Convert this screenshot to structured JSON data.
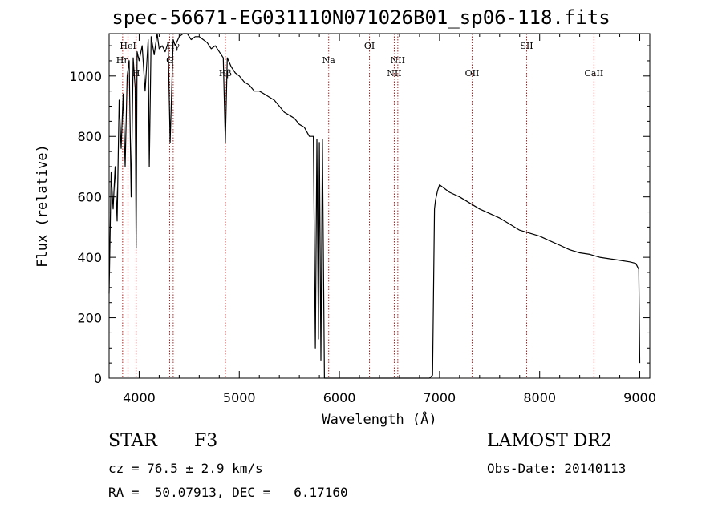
{
  "chart_data": {
    "type": "line",
    "title": "spec-56671-EG031110N071026B01_sp06-118.fits",
    "xlabel": "Wavelength (Å)",
    "ylabel": "Flux (relative)",
    "xlim": [
      3700,
      9100
    ],
    "ylim": [
      0,
      1140
    ],
    "xticks": [
      4000,
      5000,
      6000,
      7000,
      8000,
      9000
    ],
    "yticks": [
      0,
      200,
      400,
      600,
      800,
      1000
    ],
    "line_color": "#000000",
    "marker_color": "#b22222",
    "series": [
      {
        "x": [
          3700,
          3720,
          3740,
          3760,
          3780,
          3800,
          3820,
          3840,
          3860,
          3880,
          3900,
          3920,
          3940,
          3960,
          3970,
          3980,
          4000,
          4030,
          4060,
          4090,
          4101,
          4120,
          4150,
          4180,
          4200,
          4230,
          4260,
          4290,
          4310,
          4340,
          4360,
          4400,
          4440,
          4480,
          4520,
          4560,
          4600,
          4640,
          4680,
          4720,
          4760,
          4800,
          4840,
          4861,
          4880,
          4920,
          4960,
          5000,
          5050,
          5100,
          5150,
          5200,
          5250,
          5300,
          5350,
          5400,
          5450,
          5500,
          5550,
          5600,
          5650,
          5700,
          5740,
          5760,
          5775,
          5790,
          5800,
          5815,
          5830,
          5850,
          5900,
          6000,
          6500,
          6900,
          6930,
          6950,
          6960,
          6980,
          7000,
          7100,
          7200,
          7300,
          7400,
          7500,
          7600,
          7700,
          7800,
          7900,
          8000,
          8100,
          8200,
          8300,
          8400,
          8500,
          8600,
          8700,
          8800,
          8900,
          8960,
          8990,
          9000
        ],
        "y": [
          280,
          680,
          560,
          700,
          520,
          920,
          760,
          940,
          700,
          1000,
          1050,
          600,
          1060,
          960,
          430,
          1080,
          1050,
          1100,
          950,
          1120,
          700,
          1130,
          1070,
          1140,
          1090,
          1100,
          1080,
          1110,
          780,
          1120,
          1100,
          1130,
          1140,
          1140,
          1120,
          1130,
          1130,
          1120,
          1110,
          1090,
          1100,
          1080,
          1060,
          780,
          1060,
          1030,
          1010,
          1000,
          980,
          970,
          950,
          950,
          940,
          930,
          920,
          900,
          880,
          870,
          860,
          840,
          830,
          800,
          800,
          100,
          790,
          130,
          780,
          60,
          790,
          0,
          0,
          0,
          0,
          0,
          10,
          560,
          590,
          620,
          640,
          615,
          600,
          580,
          560,
          545,
          530,
          510,
          490,
          480,
          470,
          455,
          440,
          425,
          415,
          410,
          400,
          395,
          390,
          385,
          380,
          360,
          50
        ]
      }
    ],
    "line_markers": [
      {
        "label": "Hη",
        "wavelength": 3835,
        "row": 2
      },
      {
        "label": "HeI",
        "wavelength": 3889,
        "row": 1
      },
      {
        "label": "H",
        "wavelength": 3970,
        "row": 3
      },
      {
        "label": "Hγ",
        "wavelength": 4340,
        "row": 1
      },
      {
        "label": "G",
        "wavelength": 4305,
        "row": 2
      },
      {
        "label": "Hβ",
        "wavelength": 4861,
        "row": 3
      },
      {
        "label": "Na",
        "wavelength": 5893,
        "row": 2
      },
      {
        "label": "OI",
        "wavelength": 6300,
        "row": 1
      },
      {
        "label": "NII",
        "wavelength": 6548,
        "row": 3
      },
      {
        "label": "NII",
        "wavelength": 6583,
        "row": 2
      },
      {
        "label": "OII",
        "wavelength": 7325,
        "row": 3
      },
      {
        "label": "SII",
        "wavelength": 7870,
        "row": 1
      },
      {
        "label": "CaII",
        "wavelength": 8542,
        "row": 3
      }
    ]
  },
  "info": {
    "object_class": "STAR",
    "subclass": "F3",
    "redshift_line": "cz = 76.5 ± 2.9 km/s",
    "coords_line": "RA =  50.07913, DEC =   6.17160",
    "survey": "LAMOST DR2",
    "obs_date": "Obs-Date: 20140113"
  }
}
